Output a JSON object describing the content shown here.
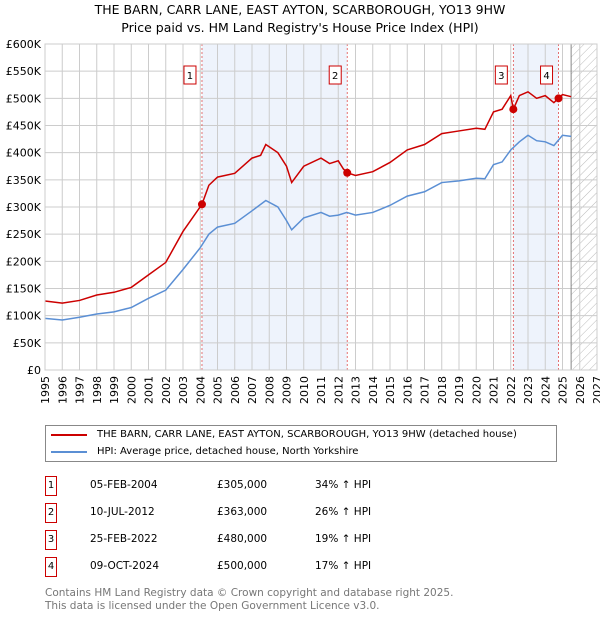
{
  "title_line1": "THE BARN, CARR LANE, EAST AYTON, SCARBOROUGH, YO13 9HW",
  "title_line2": "Price paid vs. HM Land Registry's House Price Index (HPI)",
  "chart_data": {
    "type": "line",
    "title": "THE BARN, CARR LANE, EAST AYTON, SCARBOROUGH, YO13 9HW - Price paid vs. HM Land Registry's House Price Index (HPI)",
    "xlim": [
      1995,
      2027
    ],
    "ylim": [
      0,
      600000
    ],
    "x_ticks": [
      "1995",
      "1996",
      "1997",
      "1998",
      "1999",
      "2000",
      "2001",
      "2002",
      "2003",
      "2004",
      "2005",
      "2006",
      "2007",
      "2008",
      "2009",
      "2010",
      "2011",
      "2012",
      "2013",
      "2014",
      "2015",
      "2016",
      "2017",
      "2018",
      "2019",
      "2020",
      "2021",
      "2022",
      "2023",
      "2024",
      "2025",
      "2026",
      "2027"
    ],
    "y_ticks": [
      {
        "v": 0,
        "label": "£0"
      },
      {
        "v": 50000,
        "label": "£50K"
      },
      {
        "v": 100000,
        "label": "£100K"
      },
      {
        "v": 150000,
        "label": "£150K"
      },
      {
        "v": 200000,
        "label": "£200K"
      },
      {
        "v": 250000,
        "label": "£250K"
      },
      {
        "v": 300000,
        "label": "£300K"
      },
      {
        "v": 350000,
        "label": "£350K"
      },
      {
        "v": 400000,
        "label": "£400K"
      },
      {
        "v": 450000,
        "label": "£450K"
      },
      {
        "v": 500000,
        "label": "£500K"
      },
      {
        "v": 550000,
        "label": "£550K"
      },
      {
        "v": 600000,
        "label": "£600K"
      }
    ],
    "grid": true,
    "forecast_from": 2025.5,
    "shaded_ranges": [
      [
        2004.1,
        2012.52
      ],
      [
        2022.15,
        2024.77
      ]
    ],
    "series": [
      {
        "name": "THE BARN, CARR LANE, EAST AYTON, SCARBOROUGH, YO13 9HW (detached house)",
        "color": "#cc0000",
        "x": [
          1995,
          1996,
          1997,
          1998,
          1999,
          2000,
          2001,
          2002,
          2003,
          2004.1,
          2004.5,
          2005,
          2006,
          2007,
          2007.5,
          2007.8,
          2008.5,
          2009,
          2009.3,
          2010,
          2011,
          2011.5,
          2012,
          2012.3,
          2012.52,
          2013,
          2014,
          2015,
          2016,
          2017,
          2018,
          2019,
          2020,
          2020.5,
          2021,
          2021.5,
          2022,
          2022.15,
          2022.5,
          2023,
          2023.5,
          2024,
          2024.5,
          2024.77,
          2025,
          2025.5
        ],
        "y": [
          127000,
          123000,
          128000,
          138000,
          143000,
          152000,
          175000,
          198000,
          255000,
          305000,
          340000,
          355000,
          362000,
          390000,
          395000,
          415000,
          400000,
          375000,
          345000,
          375000,
          390000,
          380000,
          385000,
          370000,
          363000,
          358000,
          365000,
          382000,
          405000,
          415000,
          435000,
          440000,
          445000,
          443000,
          475000,
          480000,
          505000,
          480000,
          505000,
          512000,
          500000,
          505000,
          492000,
          500000,
          507000,
          503000
        ]
      },
      {
        "name": "HPI: Average price, detached house, North Yorkshire",
        "color": "#5b8fd4",
        "x": [
          1995,
          1996,
          1997,
          1998,
          1999,
          2000,
          2001,
          2002,
          2003,
          2004,
          2004.5,
          2005,
          2006,
          2007,
          2007.8,
          2008.5,
          2009,
          2009.3,
          2010,
          2011,
          2011.5,
          2012,
          2012.5,
          2013,
          2014,
          2015,
          2016,
          2017,
          2018,
          2019,
          2020,
          2020.5,
          2021,
          2021.5,
          2022,
          2022.5,
          2023,
          2023.5,
          2024,
          2024.5,
          2025,
          2025.5
        ],
        "y": [
          95000,
          92000,
          97000,
          103000,
          107000,
          115000,
          132000,
          147000,
          185000,
          225000,
          250000,
          263000,
          270000,
          293000,
          312000,
          300000,
          275000,
          258000,
          280000,
          290000,
          283000,
          285000,
          290000,
          285000,
          290000,
          303000,
          320000,
          328000,
          345000,
          348000,
          353000,
          352000,
          378000,
          383000,
          405000,
          420000,
          432000,
          422000,
          420000,
          413000,
          432000,
          430000
        ]
      }
    ],
    "sales": [
      {
        "n": "1",
        "x": 2004.1,
        "price": 305000
      },
      {
        "n": "2",
        "x": 2012.52,
        "price": 363000
      },
      {
        "n": "3",
        "x": 2022.15,
        "price": 480000
      },
      {
        "n": "4",
        "x": 2024.77,
        "price": 500000
      }
    ]
  },
  "legend": [
    {
      "label": "THE BARN, CARR LANE, EAST AYTON, SCARBOROUGH, YO13 9HW (detached house)",
      "color": "#cc0000"
    },
    {
      "label": "HPI: Average price, detached house, North Yorkshire",
      "color": "#5b8fd4"
    }
  ],
  "transactions": [
    {
      "n": "1",
      "date": "05-FEB-2004",
      "price": "£305,000",
      "hpi": "34% ↑ HPI"
    },
    {
      "n": "2",
      "date": "10-JUL-2012",
      "price": "£363,000",
      "hpi": "26% ↑ HPI"
    },
    {
      "n": "3",
      "date": "25-FEB-2022",
      "price": "£480,000",
      "hpi": "19% ↑ HPI"
    },
    {
      "n": "4",
      "date": "09-OCT-2024",
      "price": "£500,000",
      "hpi": "17% ↑ HPI"
    }
  ],
  "footer_line1": "Contains HM Land Registry data © Crown copyright and database right 2025.",
  "footer_line2": "This data is licensed under the Open Government Licence v3.0."
}
